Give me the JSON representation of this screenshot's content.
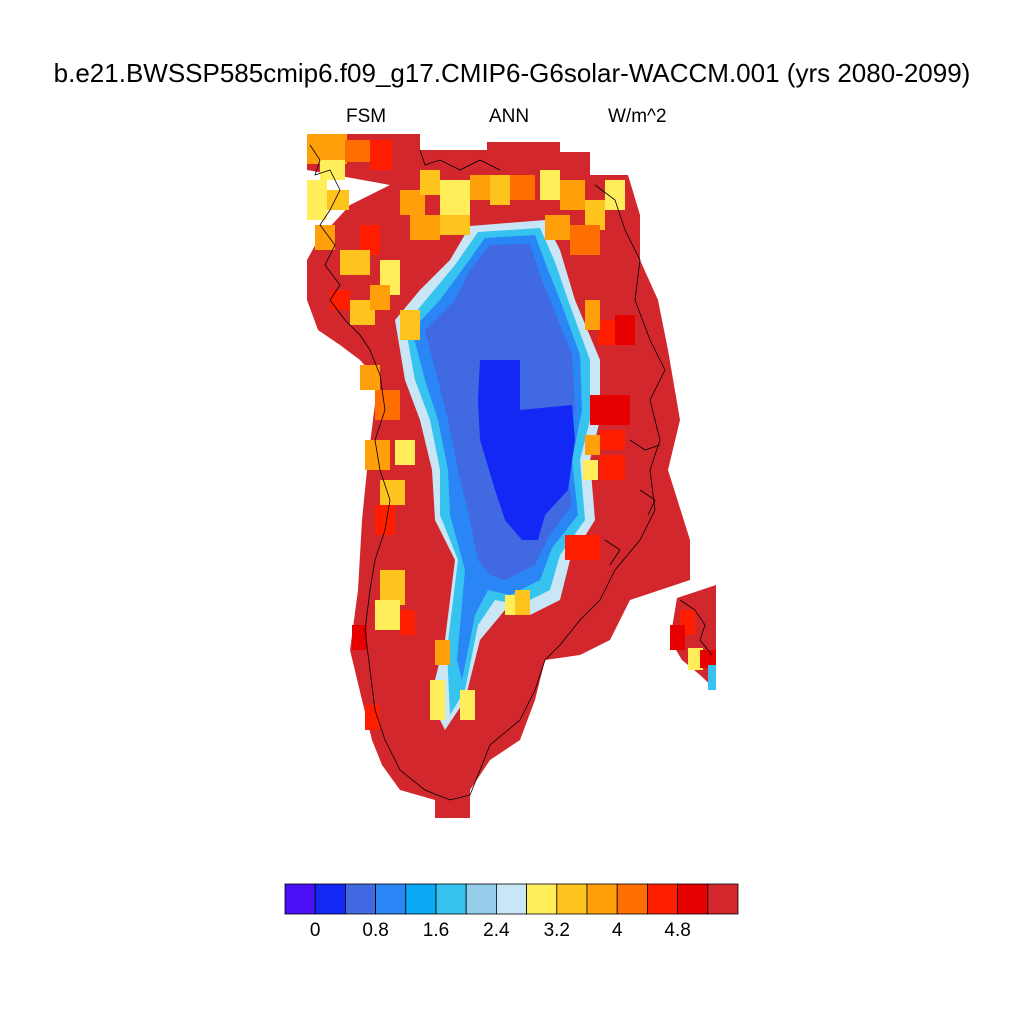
{
  "figure": {
    "title": "b.e21.BWSSP585cmip6.f09_g17.CMIP6-G6solar-WACCM.001 (yrs 2080-2099)",
    "left_label": "FSM",
    "center_label": "ANN",
    "right_label": "W/m^2"
  },
  "colorbar": {
    "colors": [
      "#4b0ff5",
      "#1428f5",
      "#4169e1",
      "#2a85f5",
      "#0aaaf5",
      "#36c3f0",
      "#96cdeb",
      "#c8e6f5",
      "#ffee5a",
      "#ffc31e",
      "#ffa00a",
      "#ff6e00",
      "#ff1e00",
      "#e60000",
      "#d2282d"
    ],
    "ticks": [
      "0",
      "0.8",
      "1.6",
      "2.4",
      "3.2",
      "4",
      "4.8"
    ]
  }
}
